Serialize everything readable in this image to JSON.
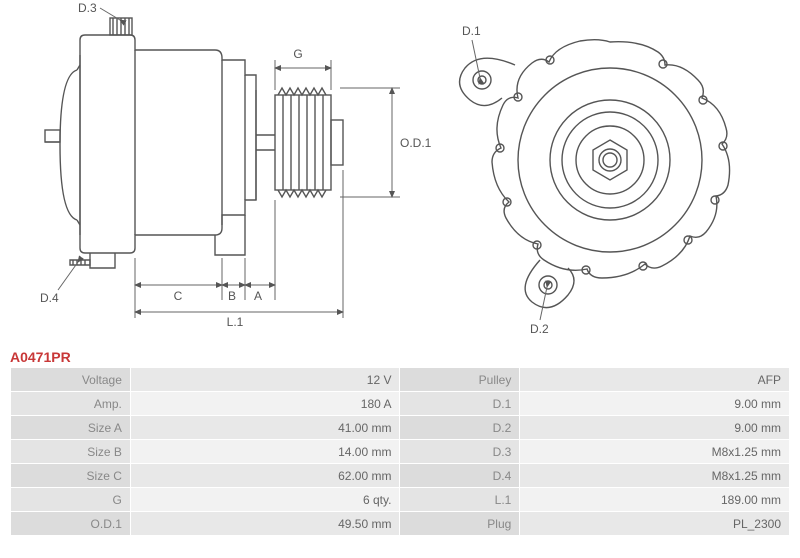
{
  "product_code": "A0471PR",
  "diagram": {
    "labels": {
      "D1": "D.1",
      "D2": "D.2",
      "D3": "D.3",
      "D4": "D.4",
      "G": "G",
      "OD1": "O.D.1",
      "A": "A",
      "B": "B",
      "C": "C",
      "L1": "L.1"
    },
    "colors": {
      "stroke": "#555555",
      "thin": "#666666",
      "label": "#555555",
      "bg": "#ffffff"
    }
  },
  "specs": {
    "rows": [
      {
        "l1": "Voltage",
        "v1": "12 V",
        "l2": "Pulley",
        "v2": "AFP"
      },
      {
        "l1": "Amp.",
        "v1": "180 A",
        "l2": "D.1",
        "v2": "9.00 mm"
      },
      {
        "l1": "Size A",
        "v1": "41.00 mm",
        "l2": "D.2",
        "v2": "9.00 mm"
      },
      {
        "l1": "Size B",
        "v1": "14.00 mm",
        "l2": "D.3",
        "v2": "M8x1.25 mm"
      },
      {
        "l1": "Size C",
        "v1": "62.00 mm",
        "l2": "D.4",
        "v2": "M8x1.25 mm"
      },
      {
        "l1": "G",
        "v1": "6 qty.",
        "l2": "L.1",
        "v2": "189.00 mm"
      },
      {
        "l1": "O.D.1",
        "v1": "49.50 mm",
        "l2": "Plug",
        "v2": "PL_2300"
      }
    ]
  }
}
